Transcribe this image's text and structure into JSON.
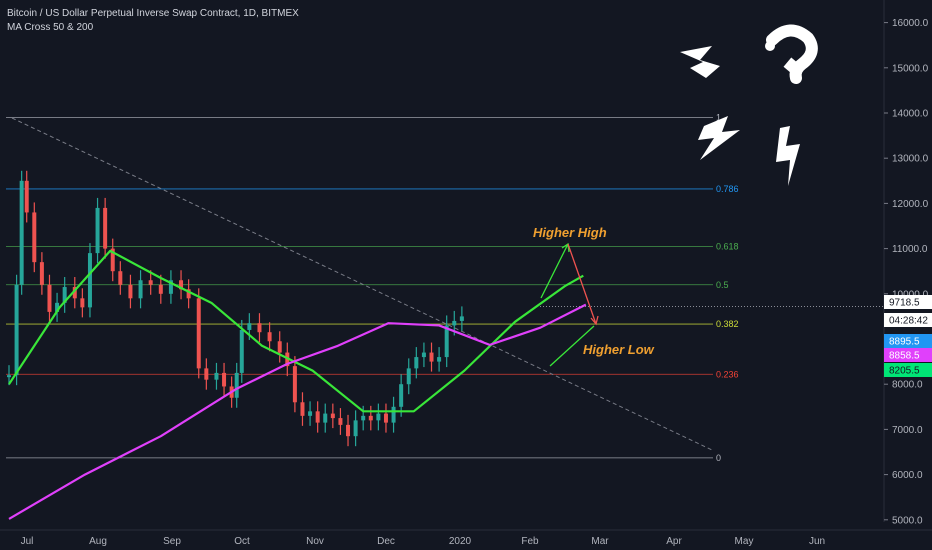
{
  "header": {
    "title": "Bitcoin / US Dollar Perpetual Inverse Swap Contract, 1D, BITMEX",
    "indicator": "MA Cross 50 & 200"
  },
  "chart_data": {
    "type": "candlestick",
    "title": "Bitcoin / US Dollar Perpetual Inverse Swap Contract, 1D, BITMEX",
    "x_ticks": [
      "Jul",
      "Aug",
      "Sep",
      "Oct",
      "Nov",
      "Dec",
      "2020",
      "Feb",
      "Mar",
      "Apr",
      "May",
      "Jun"
    ],
    "y_ticks": [
      "16000.0",
      "15000.0",
      "14000.0",
      "13000.0",
      "12000.0",
      "11000.0",
      "10000.0",
      "9000.0",
      "8000.0",
      "7000.0",
      "6000.0",
      "5000.0"
    ],
    "y_values": [
      16000,
      15000,
      14000,
      13000,
      12000,
      11000,
      10000,
      9000,
      8000,
      7000,
      6000,
      5000
    ],
    "ylim": [
      4800,
      16500
    ],
    "grid": false,
    "price_badges": [
      {
        "label": "9718.5",
        "value": 9718.5,
        "bg": "#ffffff",
        "fg": "#131722"
      },
      {
        "label": "04:28:42",
        "value": 9350,
        "bg": "#ffffff",
        "fg": "#131722"
      },
      {
        "label": "8895.5",
        "value": 8895.5,
        "bg": "#2196f3",
        "fg": "#ffffff"
      },
      {
        "label": "8858.5",
        "value": 8858.5,
        "bg": "#e040fb",
        "fg": "#ffffff"
      },
      {
        "label": "8205.5",
        "value": 8205.5,
        "bg": "#00e676",
        "fg": "#131722"
      }
    ],
    "fib_levels": [
      {
        "label": "1",
        "ratio": 1,
        "price": 13900,
        "color": "#b2b5be"
      },
      {
        "label": "0.786",
        "ratio": 0.786,
        "price": 12320,
        "color": "#2196f3"
      },
      {
        "label": "0.618",
        "ratio": 0.618,
        "price": 11050,
        "color": "#4caf50"
      },
      {
        "label": "0.5",
        "ratio": 0.5,
        "price": 10200,
        "color": "#4caf50"
      },
      {
        "label": "0.382",
        "ratio": 0.382,
        "price": 9330,
        "color": "#cddc39"
      },
      {
        "label": "0.236",
        "ratio": 0.236,
        "price": 8220,
        "color": "#f44336"
      },
      {
        "label": "0",
        "ratio": 0,
        "price": 6370,
        "color": "#b2b5be"
      }
    ],
    "series": [
      {
        "name": "MA 50",
        "color": "#39e639",
        "days": [
          0,
          20,
          40,
          60,
          80,
          100,
          120,
          140,
          160,
          180,
          200,
          220,
          227
        ],
        "values": [
          8000,
          9700,
          10950,
          10350,
          9800,
          8850,
          8300,
          7400,
          7400,
          8300,
          9380,
          10180,
          10400
        ]
      },
      {
        "name": "MA 200",
        "color": "#e040fb",
        "days": [
          0,
          30,
          60,
          90,
          110,
          130,
          150,
          170,
          190,
          210,
          228
        ],
        "values": [
          5020,
          6000,
          6850,
          7900,
          8450,
          8850,
          9350,
          9300,
          8870,
          9250,
          9760
        ]
      }
    ],
    "last_price": 9718.5,
    "candles": [
      {
        "d": 0,
        "v": 8200
      },
      {
        "d": 3,
        "v": 10200
      },
      {
        "d": 5,
        "v": 12500
      },
      {
        "d": 7,
        "v": 11800
      },
      {
        "d": 10,
        "v": 10700
      },
      {
        "d": 13,
        "v": 10200
      },
      {
        "d": 16,
        "v": 9600
      },
      {
        "d": 19,
        "v": 9800
      },
      {
        "d": 22,
        "v": 10150
      },
      {
        "d": 26,
        "v": 9900
      },
      {
        "d": 29,
        "v": 9700
      },
      {
        "d": 32,
        "v": 10900
      },
      {
        "d": 35,
        "v": 11900
      },
      {
        "d": 38,
        "v": 11000
      },
      {
        "d": 41,
        "v": 10500
      },
      {
        "d": 44,
        "v": 10200
      },
      {
        "d": 48,
        "v": 9900
      },
      {
        "d": 52,
        "v": 10300
      },
      {
        "d": 56,
        "v": 10200
      },
      {
        "d": 60,
        "v": 10000
      },
      {
        "d": 64,
        "v": 10300
      },
      {
        "d": 68,
        "v": 10100
      },
      {
        "d": 71,
        "v": 9900
      },
      {
        "d": 75,
        "v": 8350
      },
      {
        "d": 78,
        "v": 8100
      },
      {
        "d": 82,
        "v": 8250
      },
      {
        "d": 85,
        "v": 7950
      },
      {
        "d": 88,
        "v": 7700
      },
      {
        "d": 90,
        "v": 8250
      },
      {
        "d": 92,
        "v": 9200
      },
      {
        "d": 95,
        "v": 9350
      },
      {
        "d": 99,
        "v": 9150
      },
      {
        "d": 103,
        "v": 8950
      },
      {
        "d": 107,
        "v": 8700
      },
      {
        "d": 110,
        "v": 8400
      },
      {
        "d": 113,
        "v": 7600
      },
      {
        "d": 116,
        "v": 7300
      },
      {
        "d": 119,
        "v": 7400
      },
      {
        "d": 122,
        "v": 7150
      },
      {
        "d": 125,
        "v": 7350
      },
      {
        "d": 128,
        "v": 7250
      },
      {
        "d": 131,
        "v": 7100
      },
      {
        "d": 134,
        "v": 6850
      },
      {
        "d": 137,
        "v": 7200
      },
      {
        "d": 140,
        "v": 7300
      },
      {
        "d": 143,
        "v": 7200
      },
      {
        "d": 146,
        "v": 7350
      },
      {
        "d": 149,
        "v": 7150
      },
      {
        "d": 152,
        "v": 7500
      },
      {
        "d": 155,
        "v": 8000
      },
      {
        "d": 158,
        "v": 8350
      },
      {
        "d": 161,
        "v": 8600
      },
      {
        "d": 164,
        "v": 8700
      },
      {
        "d": 167,
        "v": 8500
      },
      {
        "d": 170,
        "v": 8600
      },
      {
        "d": 173,
        "v": 9300
      },
      {
        "d": 176,
        "v": 9400
      },
      {
        "d": 179,
        "v": 9500
      }
    ],
    "annotations": [
      {
        "text": "Higher High",
        "color": "#f0a030"
      },
      {
        "text": "Higher Low",
        "color": "#f0a030"
      }
    ]
  }
}
